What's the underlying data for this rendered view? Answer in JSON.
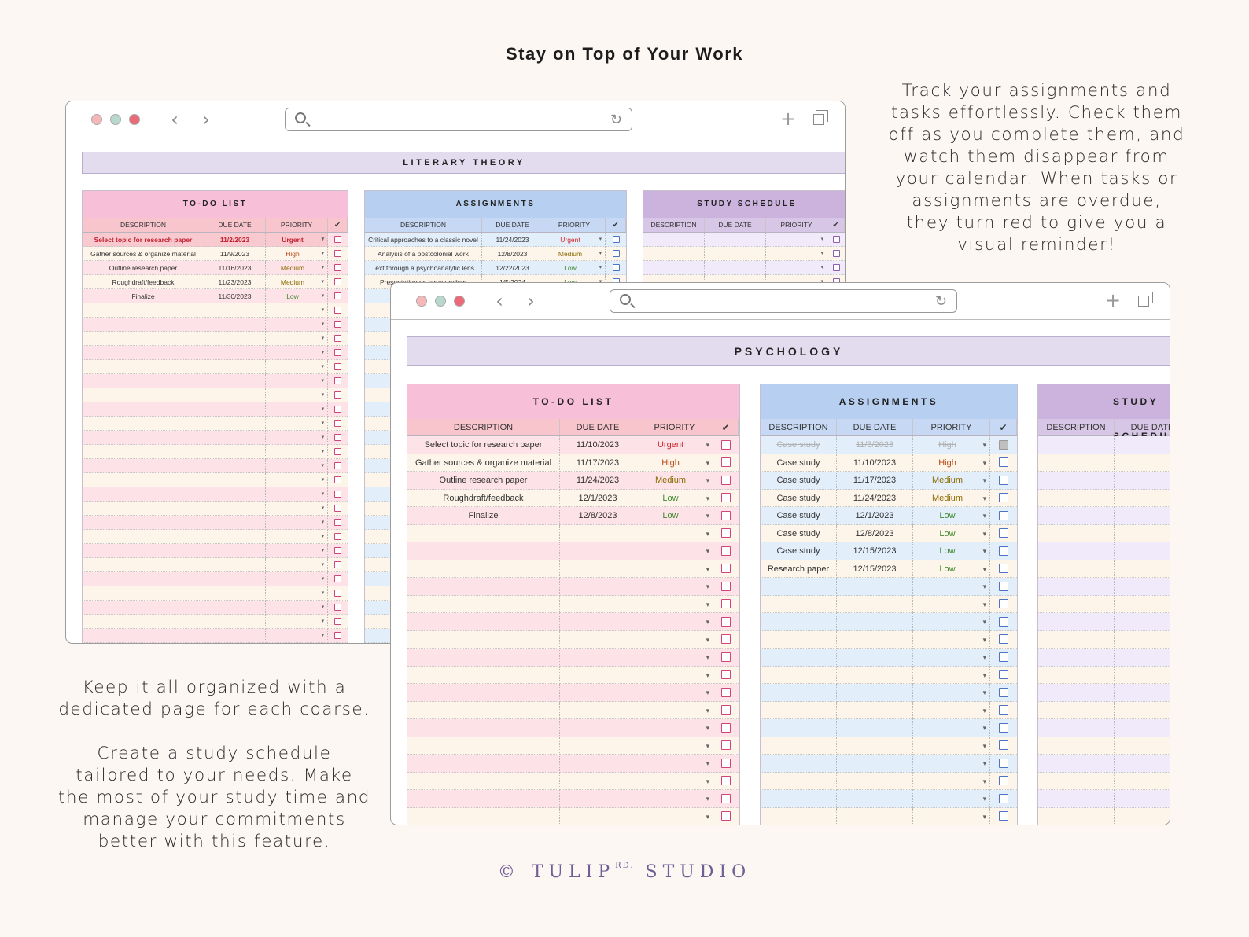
{
  "headline": "Stay on Top of Your Work",
  "blurb_right": "Track your assignments and\ntasks effortlessly. Check them\noff as you complete them, and\nwatch them disappear from\nyour calendar. When tasks or\nassignments are overdue,\nthey turn red to give you a\nvisual reminder!",
  "blurb_left_1": "Keep it all organized with a\ndedicated page for each coarse.",
  "blurb_left_2": "Create a study schedule\ntailored to your needs. Make\nthe most of your study time and\nmanage your commitments\nbetter with this feature.",
  "footer": {
    "copyright": "©",
    "brand_1": "TULIP",
    "brand_sup": "RD.",
    "brand_2": "STUDIO"
  },
  "icons": {
    "back": "chevron-left-icon",
    "forward": "chevron-right-icon",
    "search": "search-icon",
    "reload": "reload-icon",
    "new_tab": "plus-icon",
    "tabs": "tabs-icon"
  },
  "colors": {
    "urgent": "#d02a2a",
    "high": "#fbc9a8",
    "medium": "#fbe29c",
    "low": "#d6efc3",
    "brand": "#6e5f95"
  },
  "glyphs": {
    "back": "‹",
    "forward": "›",
    "reload": "↻",
    "plus": "+",
    "dropdown": "▾",
    "check_header": "✔"
  },
  "windows": [
    {
      "course": "LITERARY THEORY",
      "todo": {
        "title": "TO-DO LIST",
        "headers": [
          "DESCRIPTION",
          "DUE DATE",
          "PRIORITY"
        ],
        "rows": [
          {
            "desc": "Select topic for research paper",
            "date": "11/2/2023",
            "priority": "Urgent",
            "overdue": true
          },
          {
            "desc": "Gather sources & organize material",
            "date": "11/9/2023",
            "priority": "High"
          },
          {
            "desc": "Outline research paper",
            "date": "11/16/2023",
            "priority": "Medium"
          },
          {
            "desc": "Roughdraft/feedback",
            "date": "11/23/2023",
            "priority": "Medium"
          },
          {
            "desc": "Finalize",
            "date": "11/30/2023",
            "priority": "Low"
          }
        ],
        "empty_rows": 24
      },
      "assignments": {
        "title": "ASSIGNMENTS",
        "headers": [
          "DESCRIPTION",
          "DUE DATE",
          "PRIORITY"
        ],
        "rows": [
          {
            "desc": "Critical approaches to a classic novel",
            "date": "11/24/2023",
            "priority": "Urgent"
          },
          {
            "desc": "Analysis of a postcolonial work",
            "date": "12/8/2023",
            "priority": "Medium"
          },
          {
            "desc": "Text through a psychoanalytic lens",
            "date": "12/22/2023",
            "priority": "Low"
          },
          {
            "desc": "Presentation on structuralism",
            "date": "1/5/2024",
            "priority": "Low"
          }
        ],
        "empty_rows": 25
      },
      "study": {
        "title": "STUDY SCHEDULE",
        "headers": [
          "DESCRIPTION",
          "DUE DATE",
          "PRIORITY"
        ],
        "empty_rows": 4
      }
    },
    {
      "course": "PSYCHOLOGY",
      "todo": {
        "title": "TO-DO LIST",
        "headers": [
          "DESCRIPTION",
          "DUE DATE",
          "PRIORITY"
        ],
        "rows": [
          {
            "desc": "Select topic for research paper",
            "date": "11/10/2023",
            "priority": "Urgent"
          },
          {
            "desc": "Gather sources & organize material",
            "date": "11/17/2023",
            "priority": "High"
          },
          {
            "desc": "Outline research paper",
            "date": "11/24/2023",
            "priority": "Medium"
          },
          {
            "desc": "Roughdraft/feedback",
            "date": "12/1/2023",
            "priority": "Low"
          },
          {
            "desc": "Finalize",
            "date": "12/8/2023",
            "priority": "Low"
          }
        ],
        "empty_rows": 17
      },
      "assignments": {
        "title": "ASSIGNMENTS",
        "headers": [
          "DESCRIPTION",
          "DUE DATE",
          "PRIORITY"
        ],
        "rows": [
          {
            "desc": "Case study",
            "date": "11/3/2023",
            "priority": "High",
            "done": true
          },
          {
            "desc": "Case study",
            "date": "11/10/2023",
            "priority": "High"
          },
          {
            "desc": "Case study",
            "date": "11/17/2023",
            "priority": "Medium"
          },
          {
            "desc": "Case study",
            "date": "11/24/2023",
            "priority": "Medium"
          },
          {
            "desc": "Case study",
            "date": "12/1/2023",
            "priority": "Low"
          },
          {
            "desc": "Case study",
            "date": "12/8/2023",
            "priority": "Low"
          },
          {
            "desc": "Case study",
            "date": "12/15/2023",
            "priority": "Low"
          },
          {
            "desc": "Research paper",
            "date": "12/15/2023",
            "priority": "Low"
          }
        ],
        "empty_rows": 14
      },
      "study": {
        "title": "STUDY SCHEDULE",
        "headers": [
          "DESCRIPTION",
          "DUE DATE"
        ],
        "empty_rows": 22
      }
    }
  ]
}
